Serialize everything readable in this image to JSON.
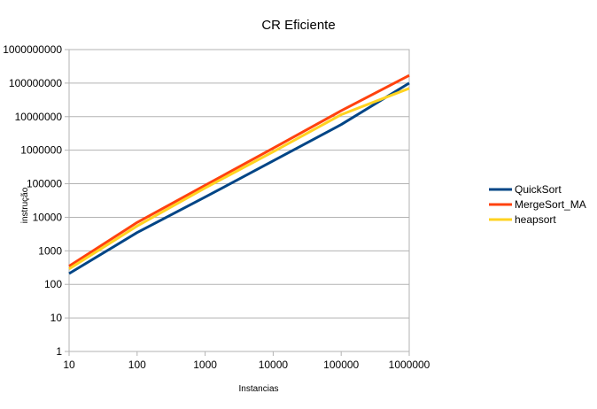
{
  "chart_data": {
    "type": "line",
    "title": "CR Eficiente",
    "xlabel": "Instancias",
    "ylabel": "instrução",
    "x_scale": "log",
    "y_scale": "log",
    "x": [
      10,
      100,
      1000,
      10000,
      100000,
      1000000
    ],
    "x_tick_labels": [
      "10",
      "100",
      "1000",
      "10000",
      "100000",
      "1000000"
    ],
    "y_tick_labels": [
      "1",
      "10",
      "100",
      "1000",
      "10000",
      "100000",
      "1000000",
      "10000000",
      "100000000",
      "1000000000"
    ],
    "xlim": [
      10,
      1000000
    ],
    "ylim": [
      1,
      1000000000
    ],
    "grid": true,
    "legend_position": "right",
    "series": [
      {
        "name": "QuickSort",
        "color": "#004586",
        "values": [
          210,
          3500,
          40000,
          480000,
          5800000,
          100000000
        ]
      },
      {
        "name": "MergeSort_MA",
        "color": "#ff420e",
        "values": [
          350,
          7000,
          90000,
          1150000,
          15000000,
          170000000
        ]
      },
      {
        "name": "heapsort",
        "color": "#ffd320",
        "values": [
          290,
          5500,
          75000,
          900000,
          11500000,
          70000000
        ]
      }
    ]
  }
}
